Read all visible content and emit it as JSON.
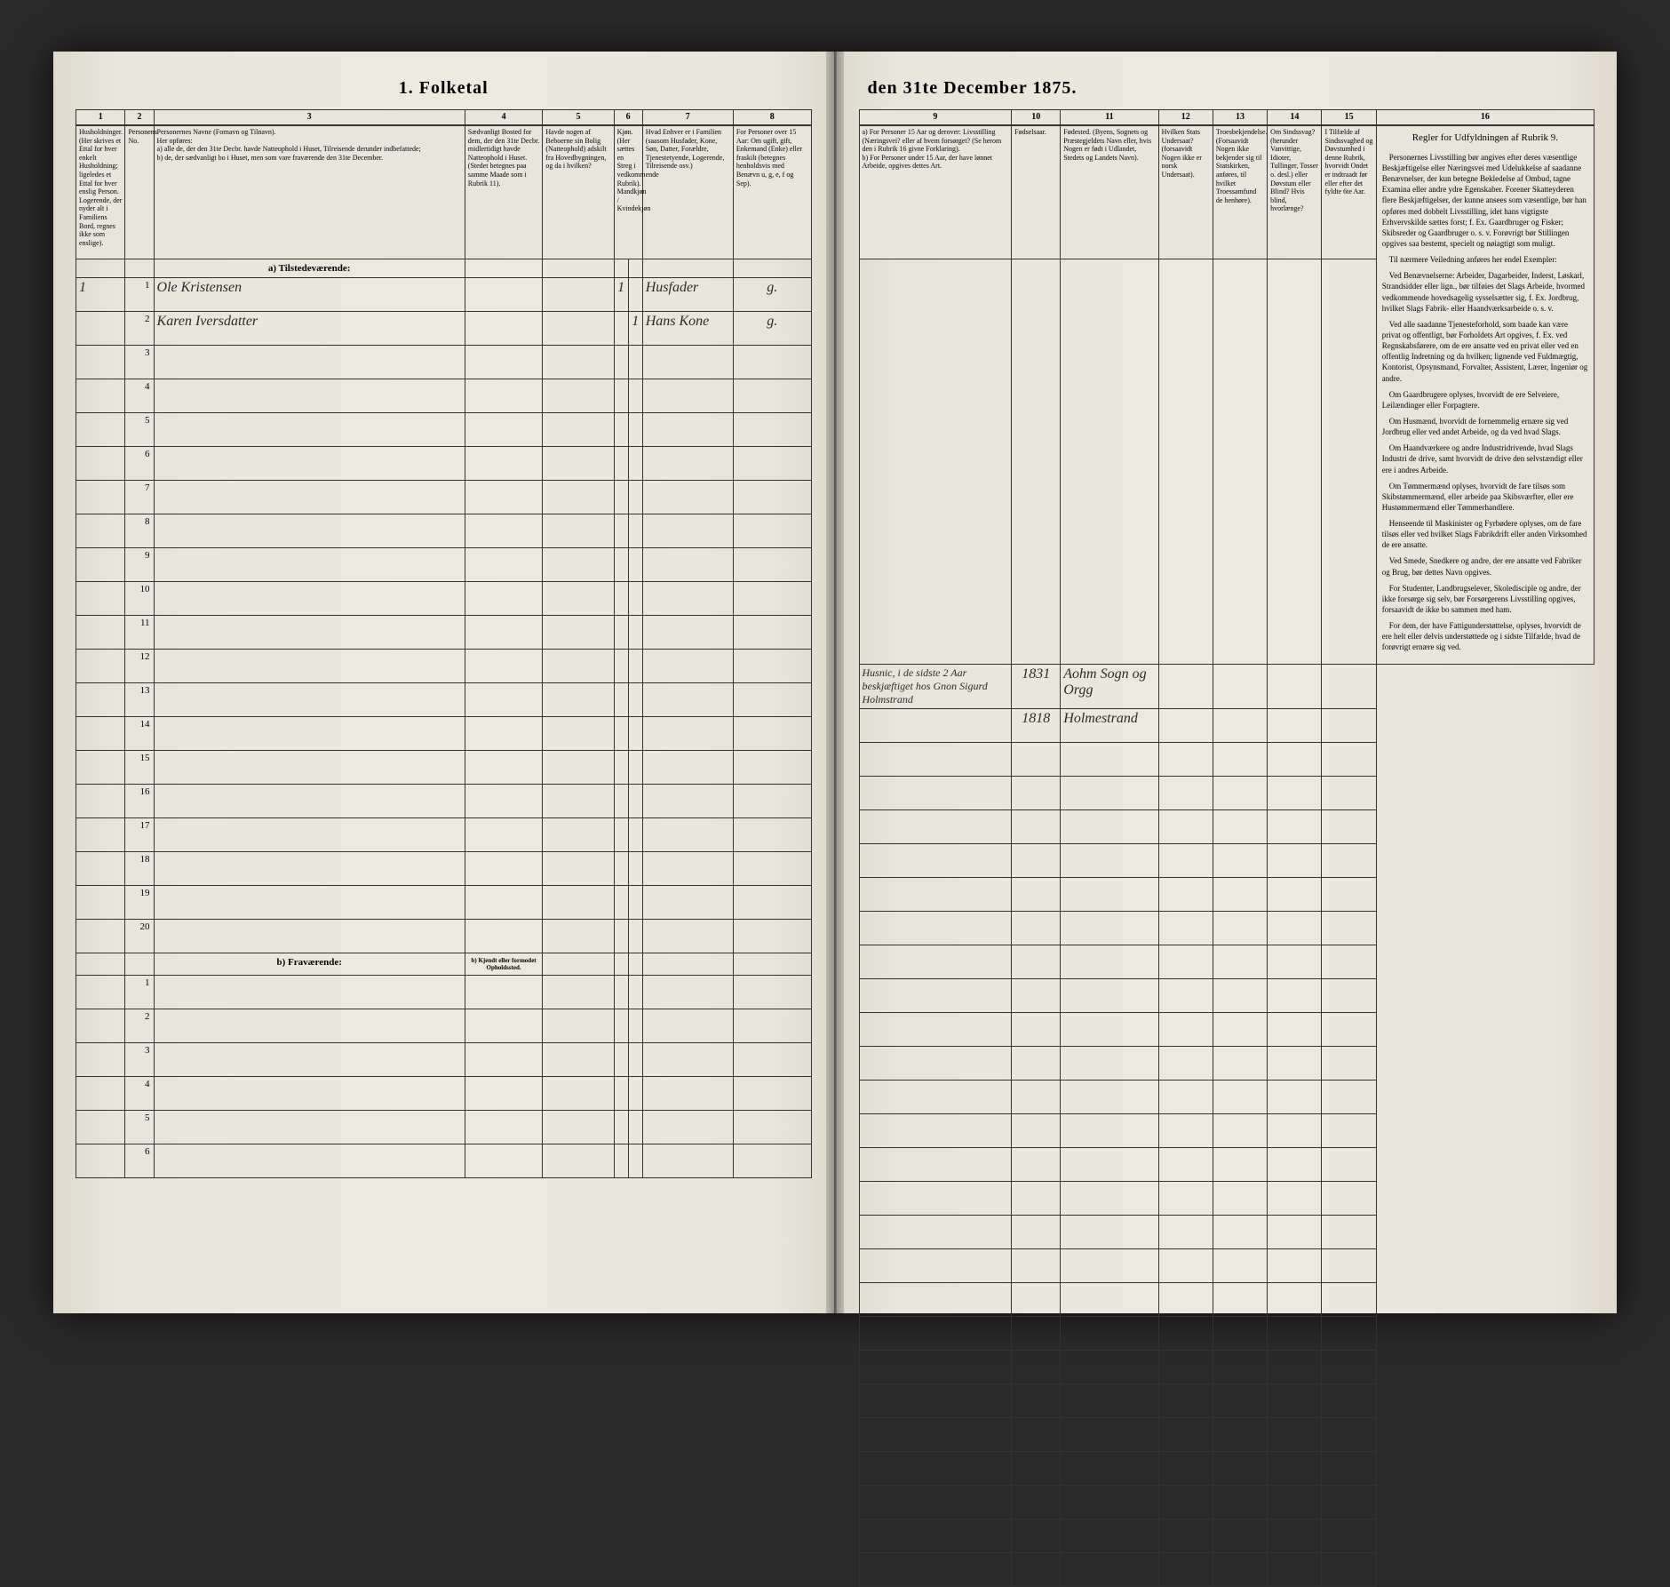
{
  "document": {
    "title_left": "1. Folketal",
    "title_right": "den 31te December 1875.",
    "background_color": "#e8e6dc",
    "ink_color": "#2a2a2a",
    "border_color": "#333333"
  },
  "left_page": {
    "columns": [
      {
        "num": "1",
        "header": "Husholdninger. (Her skrives et Ettal for hver enkelt Husholdning; ligeledes et Ettal for hver enslig Person. Logerende, der nyder alt i Familiens Bord, regnes ikke som enslige)."
      },
      {
        "num": "2",
        "header": "Personens No."
      },
      {
        "num": "3",
        "header": "Personernes Navne (Fornavn og Tilnavn).\nHer opføres:\na) alle de, der den 31te Decbr. havde Natteophold i Huset, Tilreisende derunder indbefattede;\nb) de, der sædvanligt bo i Huset, men som vare fraværende den 31te December."
      },
      {
        "num": "4",
        "header": "Sædvanligt Bosted for dem, der den 31te Decbr. midlertidigt havde Natteophold i Huset. (Stedet betegnes paa samme Maade som i Rubrik 11)."
      },
      {
        "num": "5",
        "header": "Havde nogen af Beboerne sin Bolig (Natteophold) adskilt fra Hovedbygningen, og da i hvilken?"
      },
      {
        "num": "6",
        "header": "Kjøn. (Her sættes en Streg i vedkommende Rubrik). Mandkjøn / Kvindekjøn"
      },
      {
        "num": "7",
        "header": "Hvad Enhver er i Familien (saasom Husfader, Kone, Søn, Datter, Forældre, Tjenestetyende, Logerende, Tilreisende osv.)"
      },
      {
        "num": "8",
        "header": "For Personer over 15 Aar: Om ugift, gift, Enkemand (Enke) eller fraskilt (betegnes henholdsvis med Benævn u, g, e, f og Sep)."
      }
    ],
    "section_a": "a) Tilstedeværende:",
    "section_b": "b) Fraværende:",
    "section_b_note": "b) Kjendt eller formodet Opholdssted.",
    "rows_a": [
      {
        "hh": "1",
        "pn": "1",
        "name": "Ole Kristensen",
        "c4": "",
        "c5": "",
        "sex_m": "1",
        "sex_f": "",
        "family": "Husfader",
        "marital": "g."
      },
      {
        "hh": "",
        "pn": "2",
        "name": "Karen Iversdatter",
        "c4": "",
        "c5": "",
        "sex_m": "",
        "sex_f": "1",
        "family": "Hans Kone",
        "marital": "g."
      }
    ],
    "empty_rows_a": [
      3,
      4,
      5,
      6,
      7,
      8,
      9,
      10,
      11,
      12,
      13,
      14,
      15,
      16,
      17,
      18,
      19,
      20
    ],
    "empty_rows_b": [
      1,
      2,
      3,
      4,
      5,
      6
    ]
  },
  "right_page": {
    "columns": [
      {
        "num": "9",
        "header": "a) For Personer 15 Aar og derover: Livsstilling (Næringsvei? eller af hvem forsørget? (Se herom den i Rubrik 16 givne Forklaring).\nb) For Personer under 15 Aar, der have lønnet Arbeide, opgives dettes Art."
      },
      {
        "num": "10",
        "header": "Fødselsaar."
      },
      {
        "num": "11",
        "header": "Fødested. (Byens, Sognets og Præstegjeldets Navn eller, hvis Nogen er født i Udlandet, Stedets og Landets Navn)."
      },
      {
        "num": "12",
        "header": "Hvilken Stats Undersaat? (forsaavidt Nogen ikke er norsk Undersaat)."
      },
      {
        "num": "13",
        "header": "Troesbekjendelse. (Forsaavidt Nogen ikke bekjender sig til Statskirken, anføres, til hvilket Troessamfund de henhøre)."
      },
      {
        "num": "14",
        "header": "Om Sindssvag? (herunder Vanvittige, Idioter, Tullinger, Tosser o. desl.) eller Døvstum eller Blind? Hvis blind, hvorlænge?"
      },
      {
        "num": "15",
        "header": "I Tilfælde af Sindssvaghed og Døvstumhed i denne Rubrik, hvorvidt Ondet er indtraadt før eller efter det fyldte 6te Aar."
      },
      {
        "num": "16",
        "header": "Regler for Udfyldningen af Rubrik 9."
      }
    ],
    "rows": [
      {
        "occ": "Husnic, i de sidste 2 Aar beskjæftiget hos Gnon Sigurd Holmstrand",
        "year": "1831",
        "place": "Aohm Sogn og Orgg",
        "c12": "",
        "c13": "",
        "c14": "",
        "c15": ""
      },
      {
        "occ": "",
        "year": "1818",
        "place": "Holmestrand",
        "c12": "",
        "c13": "",
        "c14": "",
        "c15": ""
      }
    ],
    "rubrik_title": "Regler for Udfyldningen af Rubrik 9.",
    "rubrik_paragraphs": [
      "Personernes Livsstilling bør angives efter deres væsentlige Beskjæftigelse eller Næringsvei med Udelukkelse af saadanne Benævnelser, der kun betegne Bekledelse af Ombud, tagne Examina eller andre ydre Egenskaber. Forener Skatteyderen flere Beskjæftigelser, der kunne ansees som væsentlige, bør han opføres med dobbelt Livsstilling, idet hans vigtigste Erhvervskilde sættes forst; f. Ex. Gaardbruger og Fisker; Skibsreder og Gaardbruger o. s. v. Forøvrigt bør Stillingen opgives saa bestemt, specielt og nøiagtigt som muligt.",
      "Til nærmere Veiledning anføres her endel Exempler:",
      "Ved Benævnelserne: Arbeider, Dagarbeider, Inderst, Løskarl, Strandsidder eller lign., bør tilføies det Slags Arbeide, hvormed vedkommende hovedsagelig sysselsætter sig, f. Ex. Jordbrug, hvilket Slags Fabrik- eller Haandværksarbeide o. s. v.",
      "Ved alle saadanne Tjenesteforhold, som baade kan være privat og offentligt, bør Forholdets Art opgives, f. Ex. ved Regnskabsførere, om de ere ansatte ved en privat eller ved en offentlig Indretning og da hvilken; lignende ved Fuldmægtig, Kontorist, Opsynsmand, Forvalter, Assistent, Lærer, Ingeniør og andre.",
      "Om Gaardbrugere oplyses, hvorvidt de ere Selveiere, Leilændinger eller Forpagtere.",
      "Om Husmænd, hvorvidt de fornemmelig ernære sig ved Jordbrug eller ved andet Arbeide, og da ved hvad Slags.",
      "Om Haandværkere og andre Industridrivende, hvad Slags Industri de drive, samt hvorvidt de drive den selvstændigt eller ere i andres Arbeide.",
      "Om Tømmermænd oplyses, hvorvidt de fare tilsøs som Skibstømmermænd, eller arbeide paa Skibsværfter, eller ere Hustømmermænd eller Tømmerhandlere.",
      "Henseende til Maskinister og Fyrbødere oplyses, om de fare tilsøs eller ved hvilket Slags Fabrikdrift eller anden Virksomhed de ere ansatte.",
      "Ved Smede, Snedkere og andre, der ere ansatte ved Fabriker og Brug, bør dettes Navn opgives.",
      "For Studenter, Landbrugselever, Skoledisciple og andre, der ikke forsørge sig selv, bør Forsørgerens Livsstilling opgives, forsaavidt de ikke bo sammen med ham.",
      "For dem, der have Fattigunderstøttelse, oplyses, hvorvidt de ere helt eller delvis understøttede og i sidste Tilfælde, hvad de forøvrigt ernære sig ved."
    ]
  }
}
